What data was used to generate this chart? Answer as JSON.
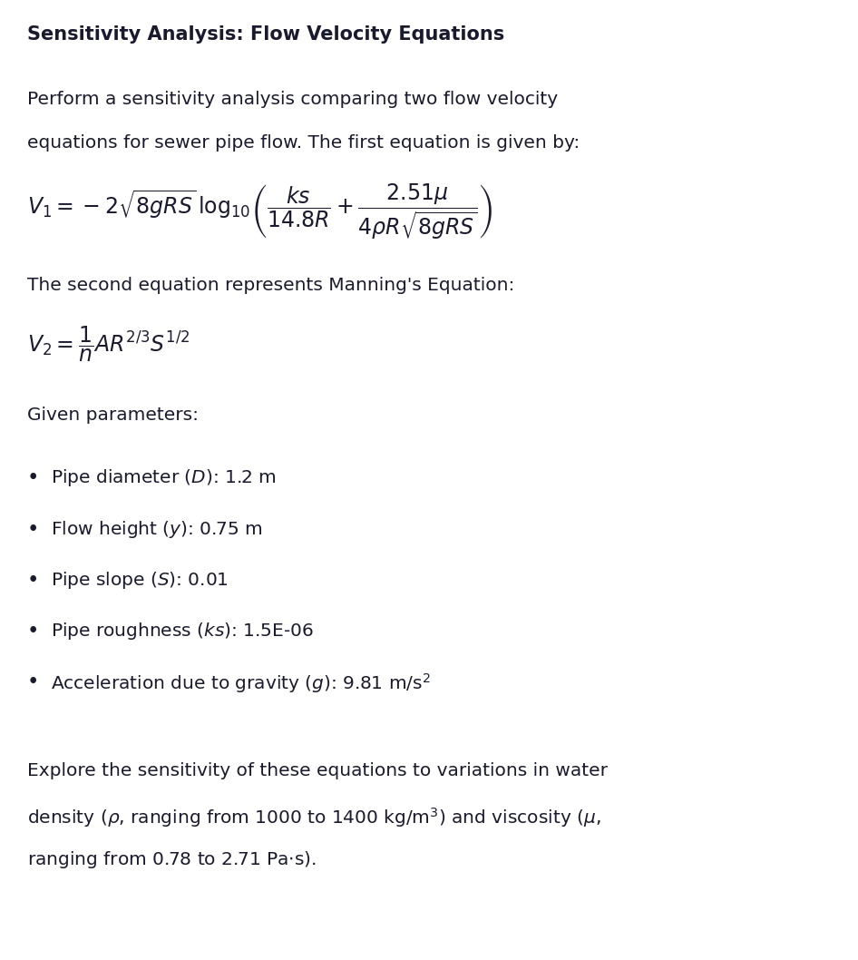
{
  "title": "Sensitivity Analysis: Flow Velocity Equations",
  "background_color": "#ffffff",
  "text_color": "#1a1a2e",
  "figsize": [
    9.46,
    10.58
  ],
  "dpi": 100,
  "intro_text_line1": "Perform a sensitivity analysis comparing two flow velocity",
  "intro_text_line2": "equations for sewer pipe flow. The first equation is given by:",
  "eq1_math": "$V_1 = -2\\sqrt{8gRS}\\,\\log_{10}\\!\\left(\\dfrac{ks}{14.8R}+\\dfrac{2.51\\mu}{4\\rho R\\sqrt{8gRS}}\\right)$",
  "eq2_intro": "The second equation represents Manning's Equation:",
  "eq2_math": "$V_2 = \\dfrac{1}{n}AR^{2/3}S^{1/2}$",
  "params_header": "Given parameters:",
  "bullet_items": [
    "Pipe diameter ($\\mathit{D}$): 1.2 m",
    "Flow height ($\\mathit{y}$): 0.75 m",
    "Pipe slope ($\\mathit{S}$): 0.01",
    "Pipe roughness ($\\mathit{ks}$): 1.5E-06",
    "Acceleration due to gravity ($\\mathit{g}$): 9.81 m/s$^2$"
  ],
  "closing_line1": "Explore the sensitivity of these equations to variations in water",
  "closing_line2": "density ($\\rho$, ranging from 1000 to 1400 kg/m$^3$) and viscosity ($\\mu$,",
  "closing_line3": "ranging from 0.78 to 2.71 Pa$\\cdot$s).",
  "title_fontsize": 15,
  "body_fontsize": 14.5,
  "eq_fontsize": 17,
  "bullet_fontsize": 14.5
}
